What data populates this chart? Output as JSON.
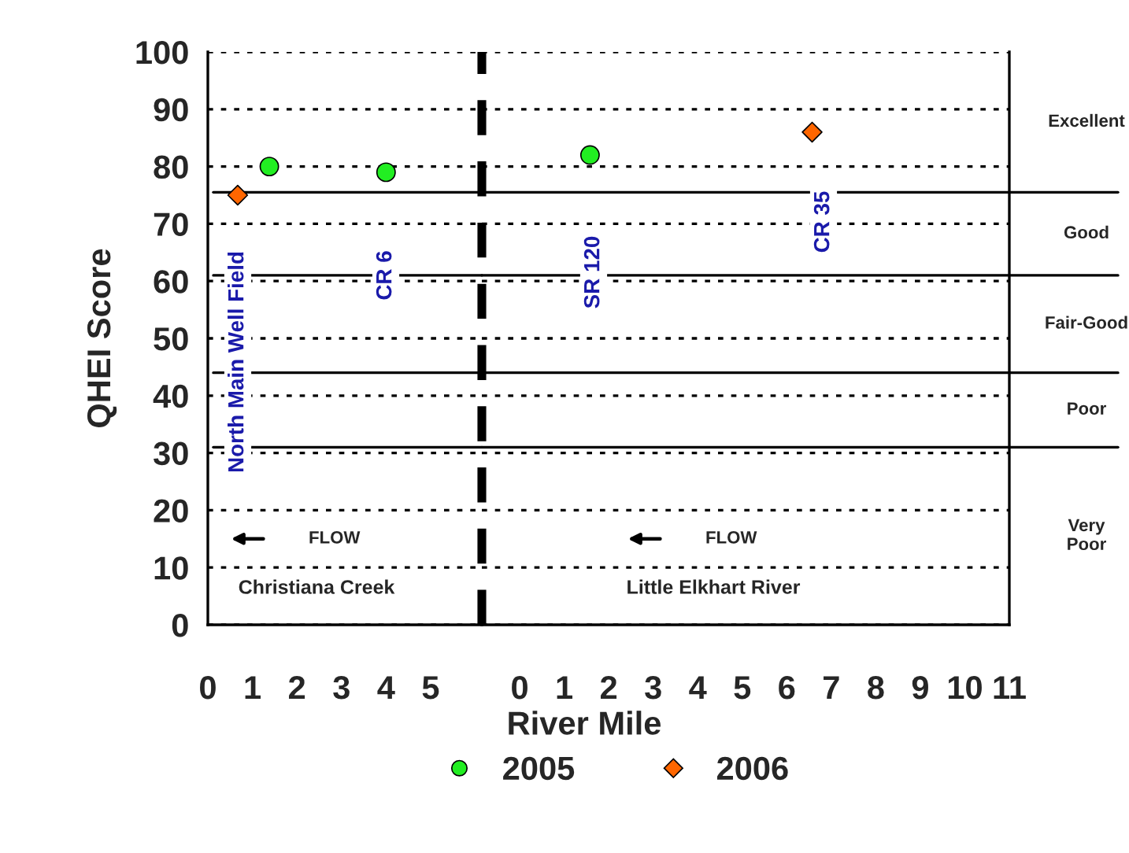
{
  "chart_data": [
    {
      "type": "scatter",
      "ylabel": "QHEI Score",
      "series": [
        {
          "color": "#22ee22",
          "marker": "circle",
          "x": [
            1.38,
            4.0
          ],
          "values": [
            80,
            79
          ]
        },
        {
          "color": "#ff6600",
          "marker": "diamond",
          "x": [
            0.67
          ],
          "values": [
            75
          ]
        }
      ],
      "xlim": [
        0,
        6.15
      ],
      "xticks": [
        0,
        1,
        2,
        3,
        4,
        5
      ],
      "ylim": [
        0,
        100
      ],
      "yticks": [
        0,
        10,
        20,
        30,
        40,
        50,
        60,
        70,
        80,
        90,
        100
      ],
      "grid": "y",
      "ref_lines": [
        {
          "axis": "x",
          "value": 6.15,
          "label": null,
          "color": "#000000",
          "line_style": "dashed"
        },
        {
          "axis": "y",
          "value": 75.5,
          "label": null,
          "color": "#000000",
          "line_style": "solid"
        },
        {
          "axis": "y",
          "value": 61,
          "label": null,
          "color": "#000000",
          "line_style": "solid"
        },
        {
          "axis": "y",
          "value": 44,
          "label": null,
          "color": "#000000",
          "line_style": "solid"
        },
        {
          "axis": "y",
          "value": 31,
          "label": null,
          "color": "#000000",
          "line_style": "solid"
        }
      ],
      "annotations": [
        "North Main Well Field",
        "CR 6",
        "Christiana Creek",
        "FLOW"
      ]
    },
    {
      "type": "scatter",
      "xlabel": "River Mile",
      "series": [
        {
          "name": "2005",
          "color": "#22ee22",
          "marker": "circle",
          "x": [
            1.58
          ],
          "values": [
            82
          ]
        },
        {
          "name": "2006",
          "color": "#ff6600",
          "marker": "diamond",
          "x": [
            6.57
          ],
          "values": [
            86
          ]
        }
      ],
      "xlim": [
        -0.85,
        11
      ],
      "xticks": [
        0,
        1,
        2,
        3,
        4,
        5,
        6,
        7,
        8,
        9,
        10,
        11
      ],
      "ylim": [
        0,
        100
      ],
      "yticks": [
        0,
        10,
        20,
        30,
        40,
        50,
        60,
        70,
        80,
        90,
        100
      ],
      "tick_labels": "x",
      "grid": "y",
      "legend": "bottom",
      "ref_lines": [
        {
          "axis": "y",
          "value": 75.5,
          "label": null,
          "color": "#000000",
          "line_style": "solid"
        },
        {
          "axis": "y",
          "value": 61,
          "label": null,
          "color": "#000000",
          "line_style": "solid"
        },
        {
          "axis": "y",
          "value": 44,
          "label": null,
          "color": "#000000",
          "line_style": "solid"
        },
        {
          "axis": "y",
          "value": 31,
          "label": null,
          "color": "#000000",
          "line_style": "solid"
        }
      ],
      "annotations": [
        "SR 120",
        "CR 35",
        "Little Elkhart River",
        "FLOW",
        "Excellent",
        "Good",
        "Fair-Good",
        "Poor",
        "Very\nPoor"
      ]
    }
  ]
}
